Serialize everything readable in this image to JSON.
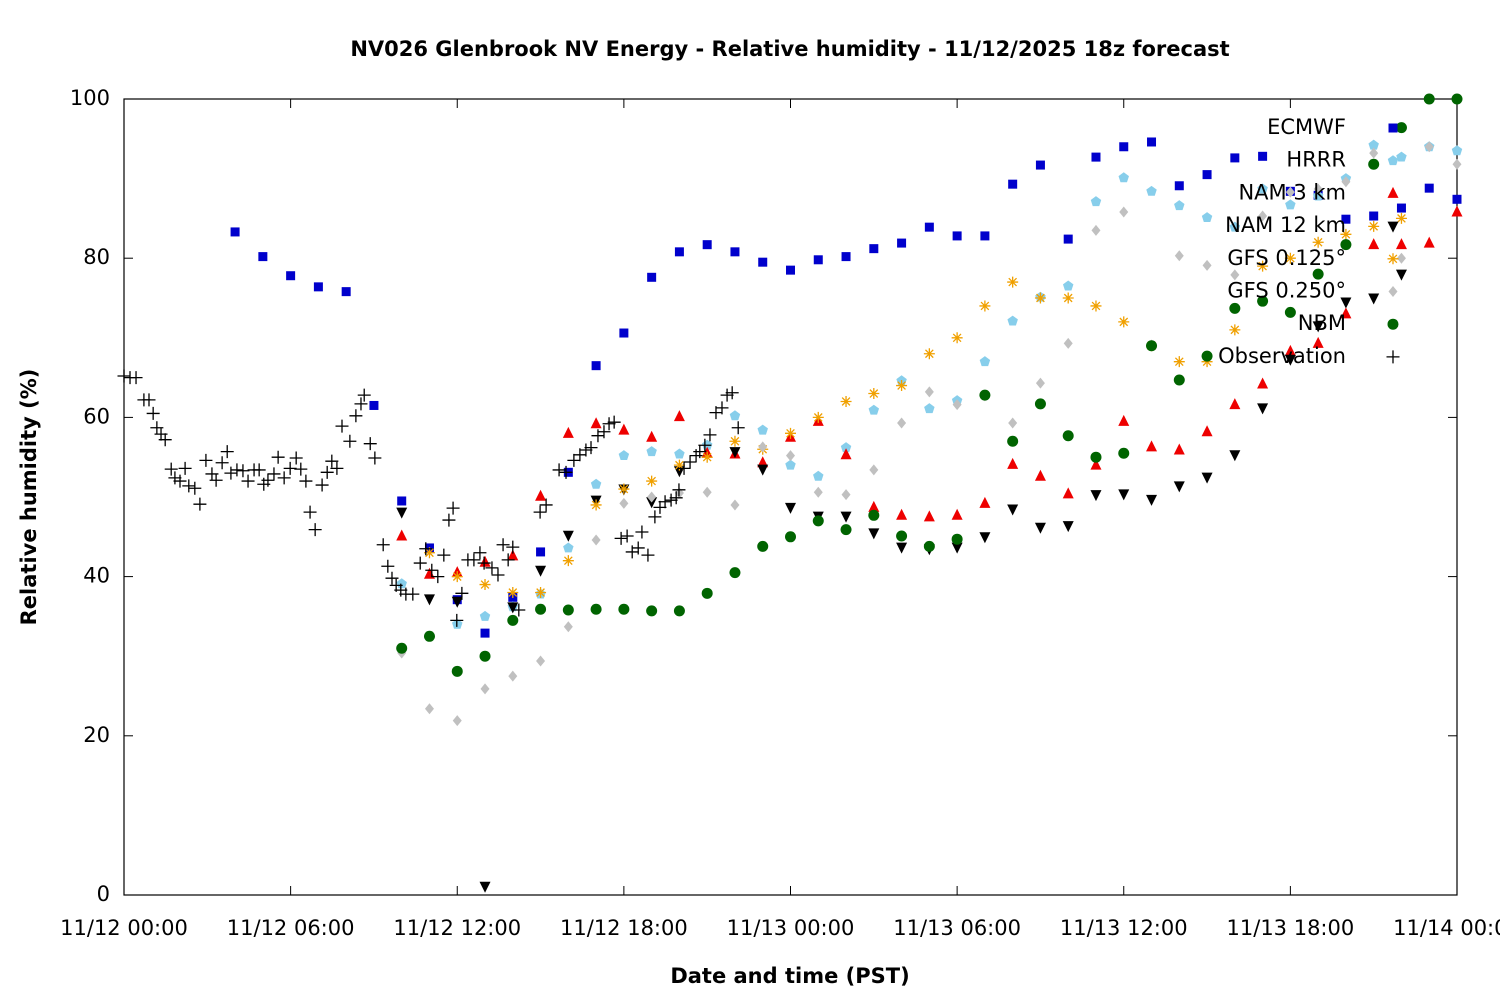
{
  "chart_data": {
    "type": "scatter",
    "title": "NV026 Glenbrook NV Energy - Relative humidity - 11/12/2025 18z forecast",
    "xlabel": "Date and time (PST)",
    "ylabel": "Relative humidity (%)",
    "xlim": [
      "11/12 00:00",
      "11/14 00:00"
    ],
    "xticks": [
      "11/12 00:00",
      "11/12 06:00",
      "11/12 12:00",
      "11/12 18:00",
      "11/13 00:00",
      "11/13 06:00",
      "11/13 12:00",
      "11/13 18:00",
      "11/14 00:00"
    ],
    "ylim": [
      0,
      100
    ],
    "yticks": [
      0,
      20,
      40,
      60,
      80,
      100
    ],
    "grid": false,
    "legend": "top right",
    "series": [
      {
        "name": "ECMWF",
        "color": "#0000cc",
        "marker": "square",
        "x": [
          "11/12 04:00",
          "11/12 05:00",
          "11/12 06:00",
          "11/12 07:00",
          "11/12 08:00",
          "11/12 09:00",
          "11/12 10:00",
          "11/12 11:00",
          "11/12 12:00",
          "11/12 13:00",
          "11/12 14:00",
          "11/12 15:00",
          "11/12 16:00",
          "11/12 17:00",
          "11/12 18:00",
          "11/12 19:00",
          "11/12 20:00",
          "11/12 21:00",
          "11/12 22:00",
          "11/12 23:00",
          "11/13 00:00",
          "11/13 01:00",
          "11/13 02:00",
          "11/13 03:00",
          "11/13 04:00",
          "11/13 05:00",
          "11/13 06:00",
          "11/13 07:00",
          "11/13 08:00",
          "11/13 09:00",
          "11/13 10:00",
          "11/13 11:00",
          "11/13 12:00",
          "11/13 13:00",
          "11/13 14:00",
          "11/13 15:00",
          "11/13 16:00",
          "11/13 17:00",
          "11/13 18:00",
          "11/13 19:00",
          "11/13 20:00",
          "11/13 21:00",
          "11/13 22:00",
          "11/13 23:00",
          "11/14 00:00"
        ],
        "values": [
          83.3,
          80.2,
          77.8,
          76.4,
          75.8,
          61.5,
          49.5,
          43.6,
          37.1,
          32.9,
          37.4,
          43.1,
          53.1,
          66.5,
          70.6,
          77.6,
          80.8,
          81.7,
          80.8,
          79.5,
          78.5,
          79.8,
          80.2,
          81.2,
          81.9,
          83.9,
          82.8,
          82.8,
          89.3,
          91.7,
          82.4,
          92.7,
          94.0,
          94.6,
          89.1,
          90.5,
          92.6,
          92.8,
          88.4,
          87.9,
          84.9,
          85.3,
          86.3,
          88.8,
          87.4
        ]
      },
      {
        "name": "HRRR",
        "color": "#87ceeb",
        "marker": "pentagon",
        "x": [
          "11/12 10:00",
          "11/12 11:00",
          "11/12 12:00",
          "11/12 13:00",
          "11/12 14:00",
          "11/12 15:00",
          "11/12 16:00",
          "11/12 17:00",
          "11/12 18:00",
          "11/12 19:00",
          "11/12 20:00",
          "11/12 21:00",
          "11/12 22:00",
          "11/12 23:00",
          "11/13 00:00",
          "11/13 01:00",
          "11/13 02:00",
          "11/13 03:00",
          "11/13 04:00",
          "11/13 05:00",
          "11/13 06:00",
          "11/13 07:00",
          "11/13 08:00",
          "11/13 09:00",
          "11/13 10:00",
          "11/13 11:00",
          "11/13 12:00",
          "11/13 13:00",
          "11/13 14:00",
          "11/13 15:00",
          "11/13 16:00",
          "11/13 17:00",
          "11/13 18:00",
          "11/13 19:00",
          "11/13 20:00",
          "11/13 21:00",
          "11/13 22:00",
          "11/13 23:00",
          "11/14 00:00"
        ],
        "values": [
          39.1,
          32.5,
          34.0,
          35.0,
          36.2,
          37.8,
          43.6,
          51.6,
          55.2,
          55.7,
          55.4,
          56.5,
          60.2,
          58.4,
          54.0,
          52.6,
          56.2,
          60.9,
          64.6,
          61.1,
          62.1,
          67.0,
          72.1,
          75.1,
          76.5,
          87.1,
          90.1,
          88.4,
          86.6,
          85.1,
          83.9,
          88.7,
          86.7,
          87.8,
          90.0,
          94.2,
          92.7,
          94.0,
          93.5
        ]
      },
      {
        "name": "NAM 3 km",
        "color": "#ee0000",
        "marker": "triangle-up",
        "x": [
          "11/12 10:00",
          "11/12 11:00",
          "11/12 12:00",
          "11/12 13:00",
          "11/12 14:00",
          "11/12 15:00",
          "11/12 16:00",
          "11/12 17:00",
          "11/12 18:00",
          "11/12 19:00",
          "11/12 20:00",
          "11/12 21:00",
          "11/12 22:00",
          "11/12 23:00",
          "11/13 00:00",
          "11/13 01:00",
          "11/13 02:00",
          "11/13 03:00",
          "11/13 04:00",
          "11/13 05:00",
          "11/13 06:00",
          "11/13 07:00",
          "11/13 08:00",
          "11/13 09:00",
          "11/13 10:00",
          "11/13 11:00",
          "11/13 12:00",
          "11/13 13:00",
          "11/13 14:00",
          "11/13 15:00",
          "11/13 16:00",
          "11/13 17:00",
          "11/13 18:00",
          "11/13 19:00",
          "11/13 20:00",
          "11/13 21:00",
          "11/13 22:00",
          "11/13 23:00",
          "11/14 00:00"
        ],
        "values": [
          45.1,
          40.3,
          40.5,
          41.8,
          42.6,
          50.1,
          58.0,
          59.2,
          58.4,
          57.5,
          60.1,
          55.5,
          55.4,
          54.3,
          57.5,
          59.5,
          55.3,
          48.7,
          47.7,
          47.5,
          47.7,
          49.2,
          54.1,
          52.6,
          50.4,
          54.0,
          59.5,
          56.3,
          55.9,
          58.2,
          61.6,
          64.2,
          68.3,
          69.3,
          73.0,
          81.7,
          81.7,
          81.9,
          85.8
        ]
      },
      {
        "name": "NAM 12 km",
        "color": "#000000",
        "marker": "triangle-down",
        "x": [
          "11/12 10:00",
          "11/12 11:00",
          "11/12 12:00",
          "11/12 13:00",
          "11/12 14:00",
          "11/12 15:00",
          "11/12 16:00",
          "11/12 17:00",
          "11/12 18:00",
          "11/12 19:00",
          "11/12 20:00",
          "11/12 22:00",
          "11/12 23:00",
          "11/13 00:00",
          "11/13 01:00",
          "11/13 02:00",
          "11/13 03:00",
          "11/13 04:00",
          "11/13 05:00",
          "11/13 06:00",
          "11/13 07:00",
          "11/13 08:00",
          "11/13 09:00",
          "11/13 10:00",
          "11/13 11:00",
          "11/13 12:00",
          "11/13 13:00",
          "11/13 14:00",
          "11/13 15:00",
          "11/13 16:00",
          "11/13 17:00",
          "11/13 18:00",
          "11/13 19:00",
          "11/13 20:00",
          "11/13 21:00",
          "11/13 22:00"
        ],
        "values": [
          48.1,
          37.2,
          36.9,
          1.1,
          36.2,
          40.8,
          45.2,
          49.6,
          51.0,
          49.4,
          53.3,
          55.7,
          53.5,
          48.7,
          47.6,
          47.6,
          45.5,
          43.7,
          43.5,
          43.7,
          45.0,
          48.5,
          46.2,
          46.4,
          50.3,
          50.4,
          49.7,
          51.4,
          52.5,
          55.3,
          61.2,
          67.3,
          71.5,
          74.5,
          75.0,
          78.0
        ]
      },
      {
        "name": "GFS 0.125°",
        "color": "#f0a000",
        "marker": "asterisk",
        "x": [
          "11/12 11:00",
          "11/12 12:00",
          "11/12 13:00",
          "11/12 14:00",
          "11/12 15:00",
          "11/12 16:00",
          "11/12 17:00",
          "11/12 18:00",
          "11/12 19:00",
          "11/12 20:00",
          "11/12 21:00",
          "11/12 22:00",
          "11/12 23:00",
          "11/13 00:00",
          "11/13 01:00",
          "11/13 02:00",
          "11/13 03:00",
          "11/13 04:00",
          "11/13 05:00",
          "11/13 06:00",
          "11/13 07:00",
          "11/13 08:00",
          "11/13 09:00",
          "11/13 10:00",
          "11/13 11:00",
          "11/13 12:00",
          "11/13 13:00",
          "11/13 14:00",
          "11/13 15:00",
          "11/13 16:00",
          "11/13 17:00",
          "11/13 18:00",
          "11/13 19:00",
          "11/13 20:00",
          "11/13 21:00",
          "11/13 22:00"
        ],
        "values": [
          43,
          40,
          39,
          38,
          38,
          42,
          49,
          51,
          52,
          54,
          55,
          57,
          56,
          58,
          60,
          62,
          63,
          64,
          68,
          70,
          74,
          77,
          75,
          75,
          74,
          72,
          69,
          67,
          67,
          71,
          79,
          80,
          82,
          83,
          84,
          85
        ]
      },
      {
        "name": "GFS 0.250°",
        "color": "#c0c0c0",
        "marker": "diamond",
        "x": [
          "11/12 10:00",
          "11/12 11:00",
          "11/12 12:00",
          "11/12 13:00",
          "11/12 14:00",
          "11/12 15:00",
          "11/12 16:00",
          "11/12 17:00",
          "11/12 18:00",
          "11/12 19:00",
          "11/12 20:00",
          "11/12 21:00",
          "11/12 22:00",
          "11/12 23:00",
          "11/13 00:00",
          "11/13 01:00",
          "11/13 02:00",
          "11/13 03:00",
          "11/13 04:00",
          "11/13 05:00",
          "11/13 06:00",
          "11/13 07:00",
          "11/13 08:00",
          "11/13 09:00",
          "11/13 10:00",
          "11/13 11:00",
          "11/13 12:00",
          "11/13 13:00",
          "11/13 14:00",
          "11/13 15:00",
          "11/13 16:00",
          "11/13 17:00",
          "11/13 18:00",
          "11/13 19:00",
          "11/13 20:00",
          "11/13 21:00",
          "11/13 22:00",
          "11/13 23:00",
          "11/14 00:00"
        ],
        "values": [
          30.4,
          23.4,
          21.9,
          25.9,
          27.5,
          29.4,
          33.7,
          44.6,
          49.2,
          50.0,
          50.5,
          50.6,
          49.0,
          56.3,
          55.2,
          50.6,
          50.3,
          53.4,
          59.3,
          63.2,
          61.6,
          62.7,
          59.3,
          64.3,
          69.3,
          83.5,
          85.8,
          69.1,
          80.3,
          79.1,
          77.9,
          85.3,
          88.3,
          88.7,
          89.6,
          93.2,
          80.0,
          94.0,
          91.8
        ]
      },
      {
        "name": "NBM",
        "color": "#006400",
        "marker": "circle",
        "x": [
          "11/12 10:00",
          "11/12 11:00",
          "11/12 12:00",
          "11/12 13:00",
          "11/12 14:00",
          "11/12 15:00",
          "11/12 16:00",
          "11/12 17:00",
          "11/12 18:00",
          "11/12 19:00",
          "11/12 20:00",
          "11/12 21:00",
          "11/12 22:00",
          "11/12 23:00",
          "11/13 00:00",
          "11/13 01:00",
          "11/13 02:00",
          "11/13 03:00",
          "11/13 04:00",
          "11/13 05:00",
          "11/13 06:00",
          "11/13 07:00",
          "11/13 08:00",
          "11/13 09:00",
          "11/13 10:00",
          "11/13 11:00",
          "11/13 12:00",
          "11/13 13:00",
          "11/13 14:00",
          "11/13 15:00",
          "11/13 16:00",
          "11/13 17:00",
          "11/13 18:00",
          "11/13 19:00",
          "11/13 20:00",
          "11/13 21:00",
          "11/13 22:00",
          "11/13 23:00",
          "11/14 00:00"
        ],
        "values": [
          31.0,
          32.5,
          28.1,
          30.0,
          34.5,
          35.9,
          35.8,
          35.9,
          35.9,
          35.7,
          35.7,
          37.9,
          40.5,
          43.8,
          45.0,
          47.0,
          45.9,
          47.7,
          45.1,
          43.8,
          44.7,
          62.8,
          57.0,
          61.7,
          57.7,
          55.0,
          55.5,
          69.0,
          64.7,
          67.7,
          73.7,
          74.6,
          73.2,
          78.0,
          81.7,
          91.8,
          96.4,
          100,
          100
        ]
      },
      {
        "name": "Observation",
        "color": "#000000",
        "marker": "plus",
        "x": [
          "11/12 00:00",
          "11/12 00:13",
          "11/12 00:26",
          "11/12 00:43",
          "11/12 00:54",
          "11/12 01:03",
          "11/12 01:11",
          "11/12 01:20",
          "11/12 01:29",
          "11/12 01:42",
          "11/12 01:50",
          "11/12 02:01",
          "11/12 02:12",
          "11/12 02:20",
          "11/12 02:33",
          "11/12 02:44",
          "11/12 02:57",
          "11/12 03:10",
          "11/12 03:19",
          "11/12 03:32",
          "11/12 03:43",
          "11/12 03:51",
          "11/12 04:04",
          "11/12 04:17",
          "11/12 04:28",
          "11/12 04:41",
          "11/12 04:52",
          "11/12 05:02",
          "11/12 05:11",
          "11/12 05:24",
          "11/12 05:33",
          "11/12 05:46",
          "11/12 05:59",
          "11/12 06:12",
          "11/12 06:22",
          "11/12 06:33",
          "11/12 06:42",
          "11/12 06:53",
          "11/12 07:08",
          "11/12 07:19",
          "11/12 07:29",
          "11/12 07:40",
          "11/12 07:51",
          "11/12 08:08",
          "11/12 08:21",
          "11/12 08:32",
          "11/12 08:39",
          "11/12 08:52",
          "11/12 09:02",
          "11/12 09:20",
          "11/12 09:30",
          "11/12 09:39",
          "11/12 09:48",
          "11/12 09:58",
          "11/12 10:09",
          "11/12 10:24",
          "11/12 10:40",
          "11/12 10:52",
          "11/12 11:05",
          "11/12 11:18",
          "11/12 11:31",
          "11/12 11:42",
          "11/12 11:51",
          "11/12 11:59",
          "11/12 12:10",
          "11/12 12:23",
          "11/12 12:36",
          "11/12 12:49",
          "11/12 12:58",
          "11/12 13:15",
          "11/12 13:28",
          "11/12 13:39",
          "11/12 13:50",
          "11/12 14:00",
          "11/12 14:13",
          "11/12 14:59",
          "11/12 15:12",
          "11/12 15:40",
          "11/12 15:55",
          "11/12 16:12",
          "11/12 16:25",
          "11/12 16:38",
          "11/12 16:49",
          "11/12 17:04",
          "11/12 17:17",
          "11/12 17:28",
          "11/12 17:39",
          "11/12 17:54",
          "11/12 18:07",
          "11/12 18:18",
          "11/12 18:31",
          "11/12 18:39",
          "11/12 18:52",
          "11/12 19:07",
          "11/12 19:18",
          "11/12 19:29",
          "11/12 19:42",
          "11/12 19:53",
          "11/12 19:59",
          "11/12 20:10",
          "11/12 20:23",
          "11/12 20:36",
          "11/12 20:44",
          "11/12 20:55",
          "11/12 21:06",
          "11/12 21:19",
          "11/12 21:32",
          "11/12 21:43",
          "11/12 21:54",
          "11/12 22:07"
        ],
        "values": [
          65.2,
          65.0,
          65.0,
          62.2,
          62.2,
          60.5,
          58.7,
          57.9,
          57.2,
          53.5,
          52.4,
          52.0,
          53.6,
          51.4,
          51.1,
          49.1,
          54.6,
          52.9,
          52.1,
          54.3,
          55.7,
          53.0,
          53.4,
          53.3,
          52.0,
          53.4,
          53.4,
          51.6,
          52.1,
          52.9,
          55.0,
          52.4,
          53.6,
          54.9,
          53.5,
          52.0,
          48.1,
          45.9,
          51.5,
          53.1,
          54.5,
          53.6,
          58.9,
          57.0,
          60.2,
          61.7,
          62.8,
          56.7,
          54.9,
          44.0,
          41.3,
          39.8,
          38.9,
          38.3,
          37.8,
          37.8,
          41.7,
          43.5,
          40.8,
          40.0,
          42.7,
          47.1,
          48.6,
          34.5,
          37.9,
          42.1,
          42.1,
          43.0,
          41.7,
          41.1,
          40.2,
          44.0,
          42.1,
          43.7,
          35.8,
          48.1,
          49.0,
          53.4,
          53.1,
          54.6,
          55.3,
          55.9,
          56.2,
          57.7,
          58.2,
          59.2,
          59.4,
          44.8,
          45.1,
          43.1,
          43.6,
          45.6,
          42.7,
          47.5,
          48.7,
          49.4,
          49.6,
          49.9,
          50.9,
          53.6,
          54.4,
          55.2,
          55.7,
          56.5,
          57.8,
          60.6,
          61.2,
          62.8,
          63.1,
          58.7
        ]
      }
    ]
  }
}
